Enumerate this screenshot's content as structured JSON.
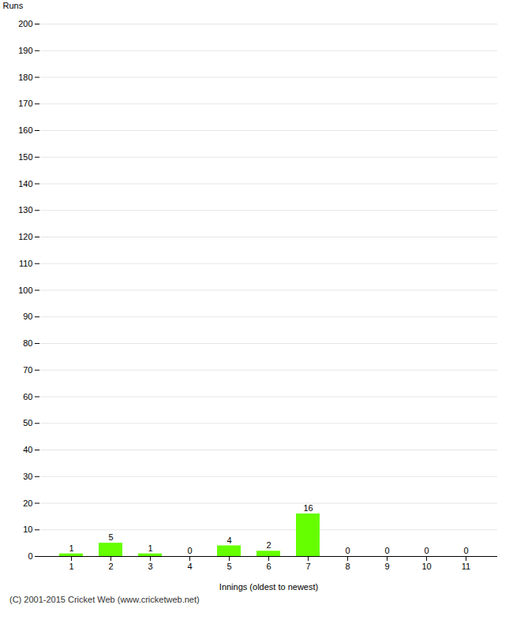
{
  "chart_data": {
    "type": "bar",
    "categories": [
      "1",
      "2",
      "3",
      "4",
      "5",
      "6",
      "7",
      "8",
      "9",
      "10",
      "11"
    ],
    "values": [
      1,
      5,
      1,
      0,
      4,
      2,
      16,
      0,
      0,
      0,
      0
    ],
    "color": "#66ff00",
    "xlabel": "Innings (oldest to newest)",
    "ylabel": "Runs",
    "ylim": [
      0,
      200
    ],
    "yticks": [
      0,
      10,
      20,
      30,
      40,
      50,
      60,
      70,
      80,
      90,
      100,
      110,
      120,
      130,
      140,
      150,
      160,
      170,
      180,
      190,
      200
    ],
    "grid": true,
    "data_labels": true,
    "caption": "(C) 2001-2015 Cricket Web (www.cricketweb.net)"
  }
}
